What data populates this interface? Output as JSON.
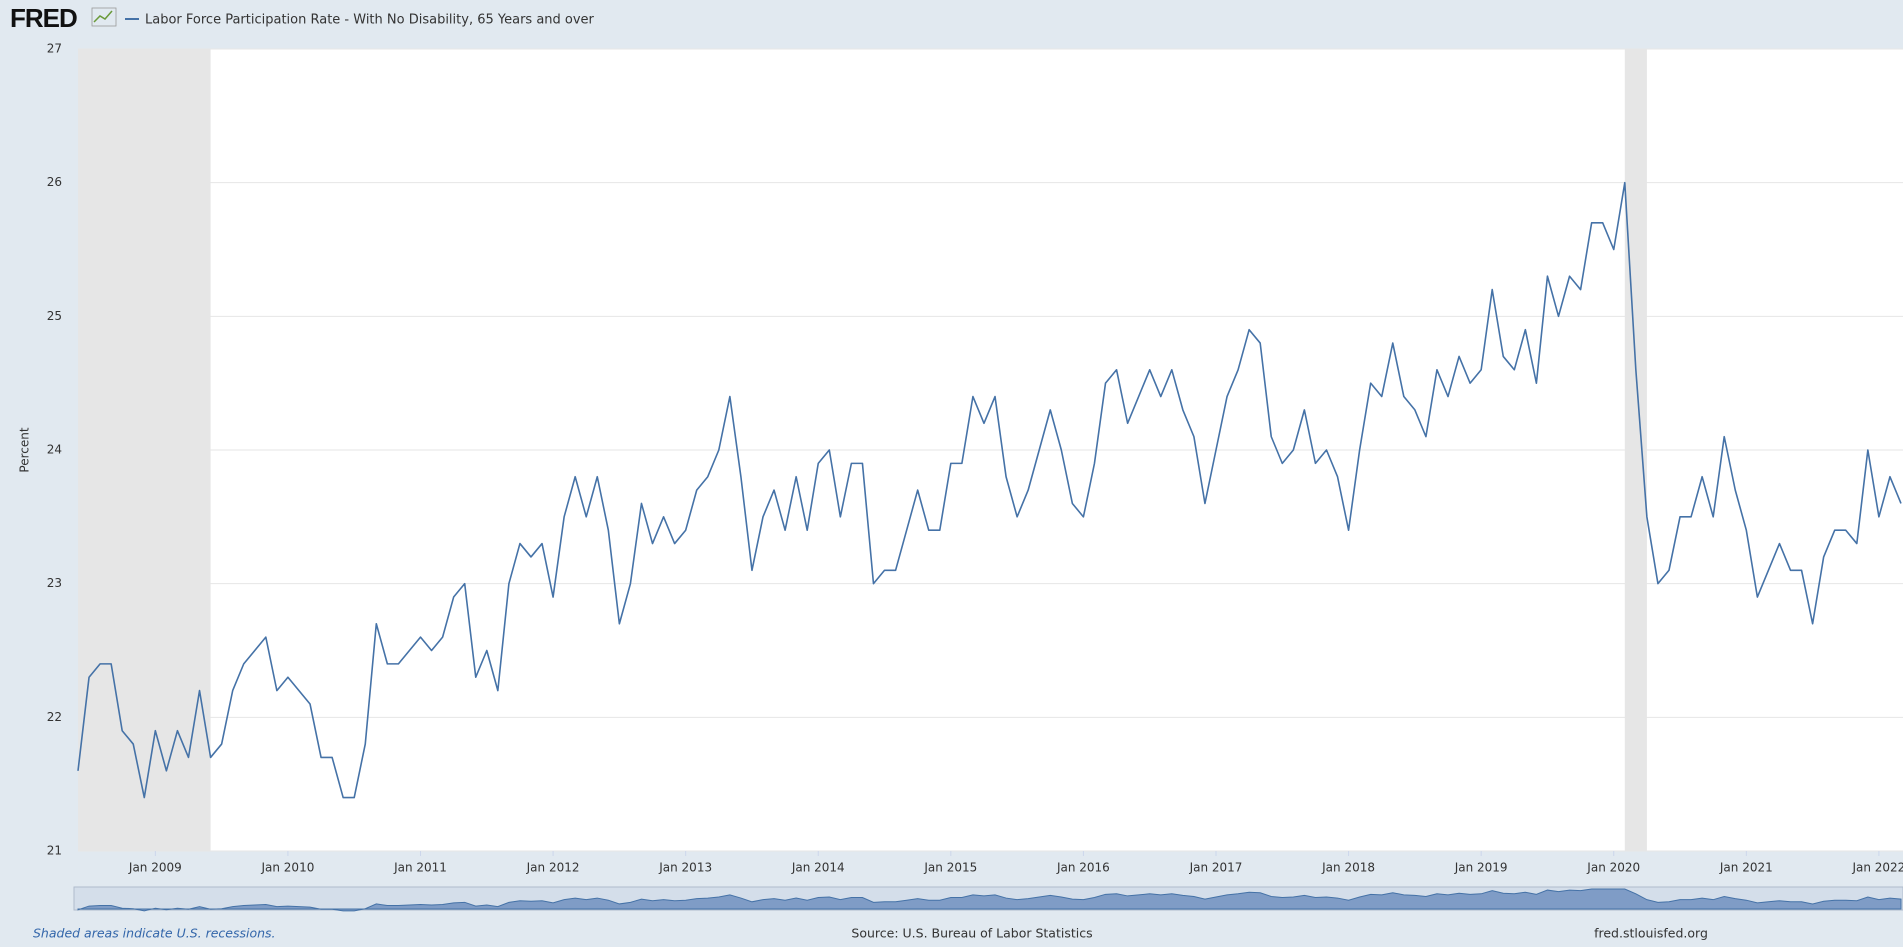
{
  "chart_data": {
    "type": "line",
    "logo": "FRED",
    "ylabel": "Percent",
    "note": "Shaded areas indicate U.S. recessions.",
    "source": "Source: U.S. Bureau of Labor Statistics",
    "site": "fred.stlouisfed.org",
    "grid": true,
    "recession_color": "#e6e6e6",
    "recessions": [
      {
        "start": "2008-06",
        "end": "2009-06"
      },
      {
        "start": "2020-02",
        "end": "2020-04"
      }
    ],
    "xlim": [
      "2008-06",
      "2022-03"
    ],
    "xticks": [
      {
        "value": "2009-01",
        "label": "Jan 2009"
      },
      {
        "value": "2010-01",
        "label": "Jan 2010"
      },
      {
        "value": "2011-01",
        "label": "Jan 2011"
      },
      {
        "value": "2012-01",
        "label": "Jan 2012"
      },
      {
        "value": "2013-01",
        "label": "Jan 2013"
      },
      {
        "value": "2014-01",
        "label": "Jan 2014"
      },
      {
        "value": "2015-01",
        "label": "Jan 2015"
      },
      {
        "value": "2016-01",
        "label": "Jan 2016"
      },
      {
        "value": "2017-01",
        "label": "Jan 2017"
      },
      {
        "value": "2018-01",
        "label": "Jan 2018"
      },
      {
        "value": "2019-01",
        "label": "Jan 2019"
      },
      {
        "value": "2020-01",
        "label": "Jan 2020"
      },
      {
        "value": "2021-01",
        "label": "Jan 2021"
      },
      {
        "value": "2022-01",
        "label": "Jan 2022"
      }
    ],
    "ylim": [
      21,
      27
    ],
    "yticks": [
      21,
      22,
      23,
      24,
      25,
      26,
      27
    ],
    "x": [
      "2008-06",
      "2008-07",
      "2008-08",
      "2008-09",
      "2008-10",
      "2008-11",
      "2008-12",
      "2009-01",
      "2009-02",
      "2009-03",
      "2009-04",
      "2009-05",
      "2009-06",
      "2009-07",
      "2009-08",
      "2009-09",
      "2009-10",
      "2009-11",
      "2009-12",
      "2010-01",
      "2010-02",
      "2010-03",
      "2010-04",
      "2010-05",
      "2010-06",
      "2010-07",
      "2010-08",
      "2010-09",
      "2010-10",
      "2010-11",
      "2010-12",
      "2011-01",
      "2011-02",
      "2011-03",
      "2011-04",
      "2011-05",
      "2011-06",
      "2011-07",
      "2011-08",
      "2011-09",
      "2011-10",
      "2011-11",
      "2011-12",
      "2012-01",
      "2012-02",
      "2012-03",
      "2012-04",
      "2012-05",
      "2012-06",
      "2012-07",
      "2012-08",
      "2012-09",
      "2012-10",
      "2012-11",
      "2012-12",
      "2013-01",
      "2013-02",
      "2013-03",
      "2013-04",
      "2013-05",
      "2013-06",
      "2013-07",
      "2013-08",
      "2013-09",
      "2013-10",
      "2013-11",
      "2013-12",
      "2014-01",
      "2014-02",
      "2014-03",
      "2014-04",
      "2014-05",
      "2014-06",
      "2014-07",
      "2014-08",
      "2014-09",
      "2014-10",
      "2014-11",
      "2014-12",
      "2015-01",
      "2015-02",
      "2015-03",
      "2015-04",
      "2015-05",
      "2015-06",
      "2015-07",
      "2015-08",
      "2015-09",
      "2015-10",
      "2015-11",
      "2015-12",
      "2016-01",
      "2016-02",
      "2016-03",
      "2016-04",
      "2016-05",
      "2016-06",
      "2016-07",
      "2016-08",
      "2016-09",
      "2016-10",
      "2016-11",
      "2016-12",
      "2017-01",
      "2017-02",
      "2017-03",
      "2017-04",
      "2017-05",
      "2017-06",
      "2017-07",
      "2017-08",
      "2017-09",
      "2017-10",
      "2017-11",
      "2017-12",
      "2018-01",
      "2018-02",
      "2018-03",
      "2018-04",
      "2018-05",
      "2018-06",
      "2018-07",
      "2018-08",
      "2018-09",
      "2018-10",
      "2018-11",
      "2018-12",
      "2019-01",
      "2019-02",
      "2019-03",
      "2019-04",
      "2019-05",
      "2019-06",
      "2019-07",
      "2019-08",
      "2019-09",
      "2019-10",
      "2019-11",
      "2019-12",
      "2020-01",
      "2020-02",
      "2020-03",
      "2020-04",
      "2020-05",
      "2020-06",
      "2020-07",
      "2020-08",
      "2020-09",
      "2020-10",
      "2020-11",
      "2020-12",
      "2021-01",
      "2021-02",
      "2021-03",
      "2021-04",
      "2021-05",
      "2021-06",
      "2021-07",
      "2021-08",
      "2021-09",
      "2021-10",
      "2021-11",
      "2021-12",
      "2022-01",
      "2022-02",
      "2022-03"
    ],
    "series": [
      {
        "name": "Labor Force Participation Rate - With No Disability, 65 Years and over",
        "color": "#4572a7",
        "values": [
          21.6,
          22.3,
          22.4,
          22.4,
          21.9,
          21.8,
          21.4,
          21.9,
          21.6,
          21.9,
          21.7,
          22.2,
          21.7,
          21.8,
          22.2,
          22.4,
          22.5,
          22.6,
          22.2,
          22.3,
          22.2,
          22.1,
          21.7,
          21.7,
          21.4,
          21.4,
          21.8,
          22.7,
          22.4,
          22.4,
          22.5,
          22.6,
          22.5,
          22.6,
          22.9,
          23.0,
          22.3,
          22.5,
          22.2,
          23.0,
          23.3,
          23.2,
          23.3,
          22.9,
          23.5,
          23.8,
          23.5,
          23.8,
          23.4,
          22.7,
          23.0,
          23.6,
          23.3,
          23.5,
          23.3,
          23.4,
          23.7,
          23.8,
          24.0,
          24.4,
          23.8,
          23.1,
          23.5,
          23.7,
          23.4,
          23.8,
          23.4,
          23.9,
          24.0,
          23.5,
          23.9,
          23.9,
          23.0,
          23.1,
          23.1,
          23.4,
          23.7,
          23.4,
          23.4,
          23.9,
          23.9,
          24.4,
          24.2,
          24.4,
          23.8,
          23.5,
          23.7,
          24.0,
          24.3,
          24.0,
          23.6,
          23.5,
          23.9,
          24.5,
          24.6,
          24.2,
          24.4,
          24.6,
          24.4,
          24.6,
          24.3,
          24.1,
          23.6,
          24.0,
          24.4,
          24.6,
          24.9,
          24.8,
          24.1,
          23.9,
          24.0,
          24.3,
          23.9,
          24.0,
          23.8,
          23.4,
          24.0,
          24.5,
          24.4,
          24.8,
          24.4,
          24.3,
          24.1,
          24.6,
          24.4,
          24.7,
          24.5,
          24.6,
          25.2,
          24.7,
          24.6,
          24.9,
          24.5,
          25.3,
          25.0,
          25.3,
          25.2,
          25.7,
          25.7,
          25.5,
          26.0,
          24.6,
          23.5,
          23.0,
          23.1,
          23.5,
          23.5,
          23.8,
          23.5,
          24.1,
          23.7,
          23.4,
          22.9,
          23.1,
          23.3,
          23.1,
          23.1,
          22.7,
          23.2,
          23.4,
          23.4,
          23.3,
          24.0,
          23.5,
          23.8,
          23.6
        ]
      }
    ]
  }
}
